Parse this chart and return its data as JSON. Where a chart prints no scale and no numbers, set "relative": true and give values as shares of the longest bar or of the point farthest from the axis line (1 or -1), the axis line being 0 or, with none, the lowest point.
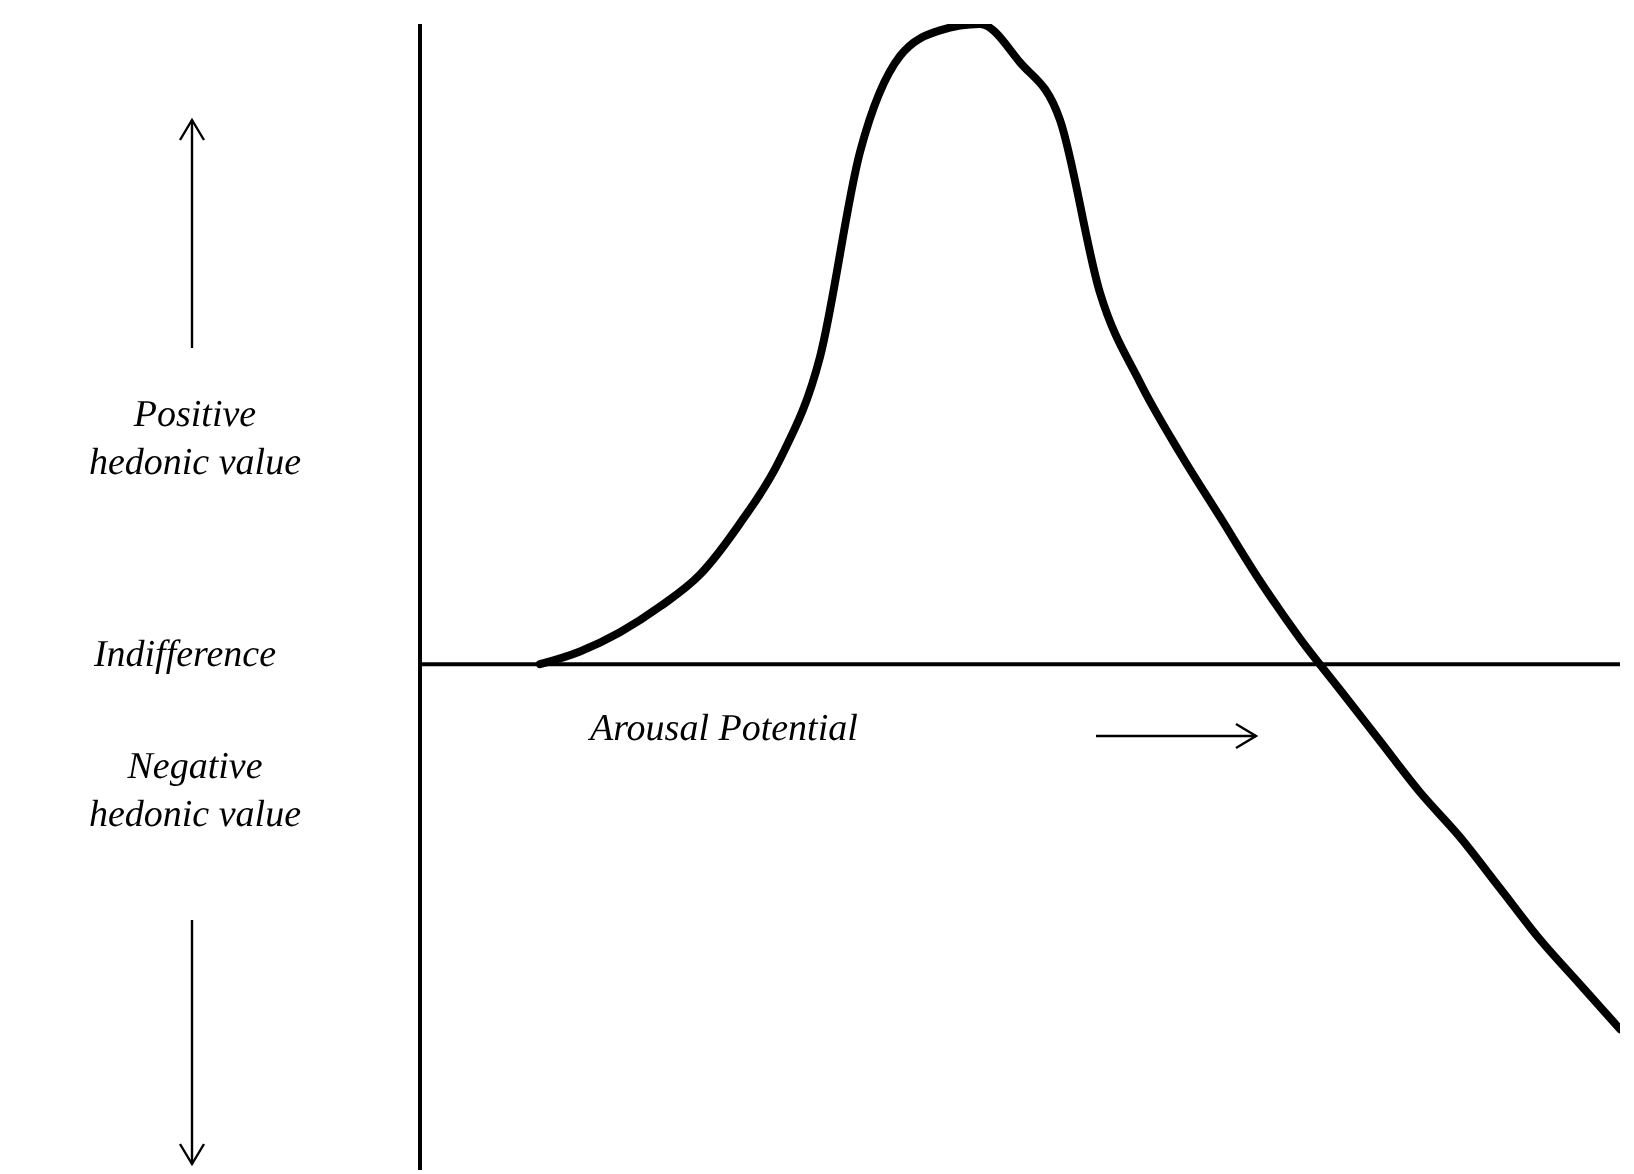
{
  "chart_data": {
    "type": "line",
    "relative": true,
    "xlabel": "Arousal Potential",
    "annotations": [
      "Positive hedonic value",
      "Indifference",
      "Negative hedonic value"
    ],
    "categories": [
      null,
      null,
      null,
      null,
      null,
      null,
      null,
      null,
      null,
      null,
      null,
      null,
      null,
      null,
      null,
      null,
      null,
      null,
      null,
      null,
      null,
      null,
      null,
      null,
      null,
      null,
      null,
      null,
      null,
      null,
      null
    ],
    "series": [
      {
        "color": "#000000",
        "values": [
          null,
          null,
          null,
          0.0,
          0.02,
          0.05,
          0.09,
          0.14,
          0.22,
          0.32,
          0.48,
          0.8,
          0.95,
          0.99,
          1.0,
          0.94,
          0.85,
          0.58,
          0.44,
          0.33,
          0.23,
          0.13,
          0.04,
          -0.04,
          -0.12,
          -0.2,
          -0.27,
          -0.35,
          -0.43,
          -0.5,
          -0.57
        ]
      }
    ],
    "marker": "none",
    "line_style": "solid"
  }
}
